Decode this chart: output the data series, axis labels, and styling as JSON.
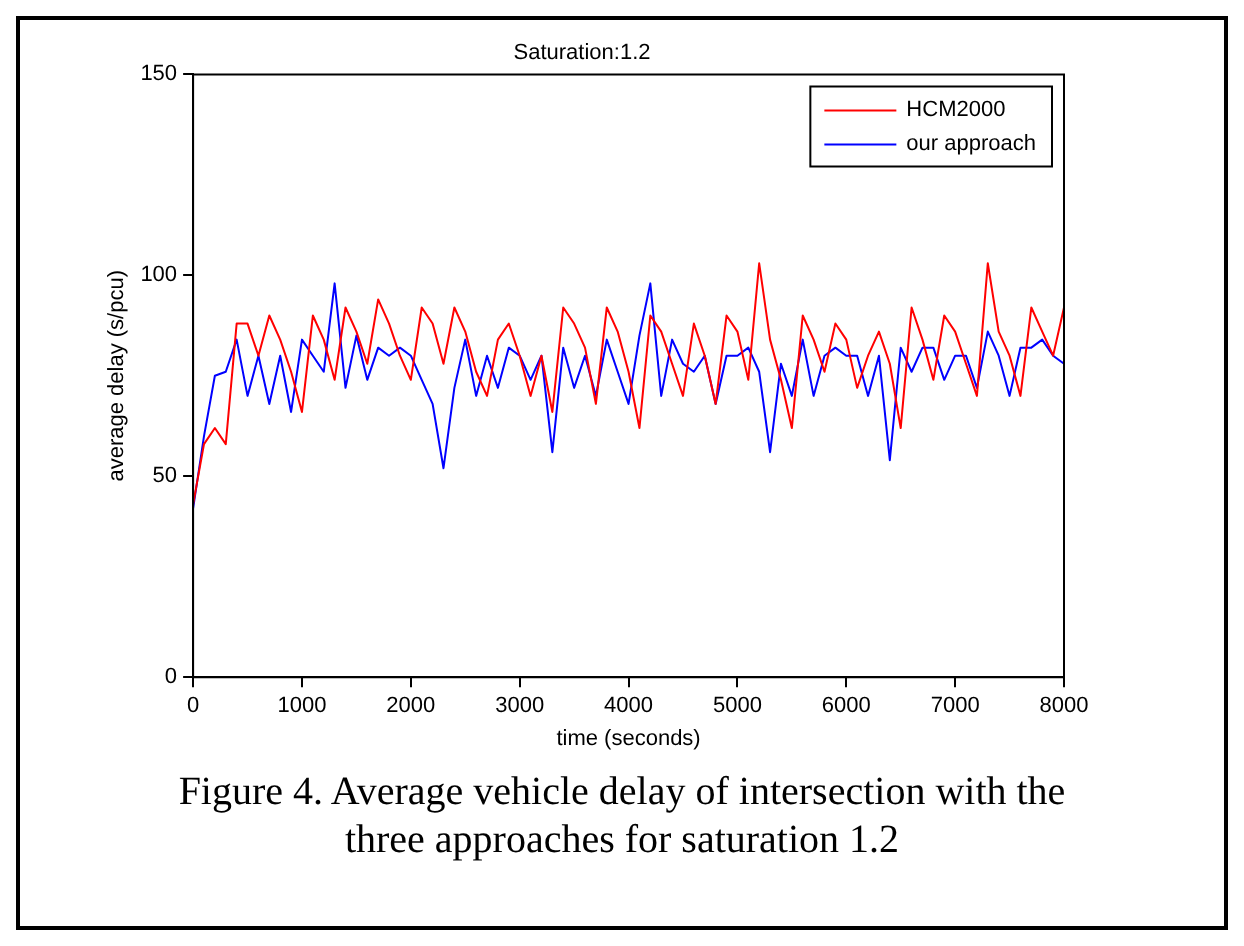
{
  "chart_data": {
    "type": "line",
    "title": "Saturation:1.2",
    "xlabel": "time (seconds)",
    "ylabel": "average delay (s/pcu)",
    "x": [
      0,
      100,
      200,
      300,
      400,
      500,
      600,
      700,
      800,
      900,
      1000,
      1100,
      1200,
      1300,
      1400,
      1500,
      1600,
      1700,
      1800,
      1900,
      2000,
      2100,
      2200,
      2300,
      2400,
      2500,
      2600,
      2700,
      2800,
      2900,
      3000,
      3100,
      3200,
      3300,
      3400,
      3500,
      3600,
      3700,
      3800,
      3900,
      4000,
      4100,
      4200,
      4300,
      4400,
      4500,
      4600,
      4700,
      4800,
      4900,
      5000,
      5100,
      5200,
      5300,
      5400,
      5500,
      5600,
      5700,
      5800,
      5900,
      6000,
      6100,
      6200,
      6300,
      6400,
      6500,
      6600,
      6700,
      6800,
      6900,
      7000,
      7100,
      7200,
      7300,
      7400,
      7500,
      7600,
      7700,
      7800,
      7900,
      8000
    ],
    "series": [
      {
        "name": "HCM2000",
        "color": "#ff0000",
        "values": [
          43,
          58,
          62,
          58,
          88,
          88,
          80,
          90,
          84,
          76,
          66,
          90,
          84,
          74,
          92,
          86,
          78,
          94,
          88,
          80,
          74,
          92,
          88,
          78,
          92,
          86,
          76,
          70,
          84,
          88,
          80,
          70,
          80,
          66,
          92,
          88,
          82,
          68,
          92,
          86,
          76,
          62,
          90,
          86,
          78,
          70,
          88,
          80,
          68,
          90,
          86,
          74,
          103,
          84,
          74,
          62,
          90,
          84,
          76,
          88,
          84,
          72,
          80,
          86,
          78,
          62,
          92,
          84,
          74,
          90,
          86,
          78,
          70,
          103,
          86,
          80,
          70,
          92,
          86,
          80,
          92
        ]
      },
      {
        "name": "our approach",
        "color": "#0000ff",
        "values": [
          42,
          60,
          75,
          76,
          84,
          70,
          80,
          68,
          80,
          66,
          84,
          80,
          76,
          98,
          72,
          85,
          74,
          82,
          80,
          82,
          80,
          74,
          68,
          52,
          72,
          84,
          70,
          80,
          72,
          82,
          80,
          74,
          80,
          56,
          82,
          72,
          80,
          70,
          84,
          76,
          68,
          85,
          98,
          70,
          84,
          78,
          76,
          80,
          68,
          80,
          80,
          82,
          76,
          56,
          78,
          70,
          84,
          70,
          80,
          82,
          80,
          80,
          70,
          80,
          54,
          82,
          76,
          82,
          82,
          74,
          80,
          80,
          72,
          86,
          80,
          70,
          82,
          82,
          84,
          80,
          78
        ]
      }
    ],
    "xlim": [
      0,
      8000
    ],
    "xticks": [
      0,
      1000,
      2000,
      3000,
      4000,
      5000,
      6000,
      7000,
      8000
    ],
    "ylim": [
      0,
      150
    ],
    "yticks": [
      0,
      50,
      100,
      150
    ],
    "grid": false,
    "legend": "top right",
    "marker": "none",
    "line_style": "solid",
    "annotations": [
      "Figure 4. Average vehicle delay of intersection with the three approaches for saturation 1.2"
    ]
  }
}
